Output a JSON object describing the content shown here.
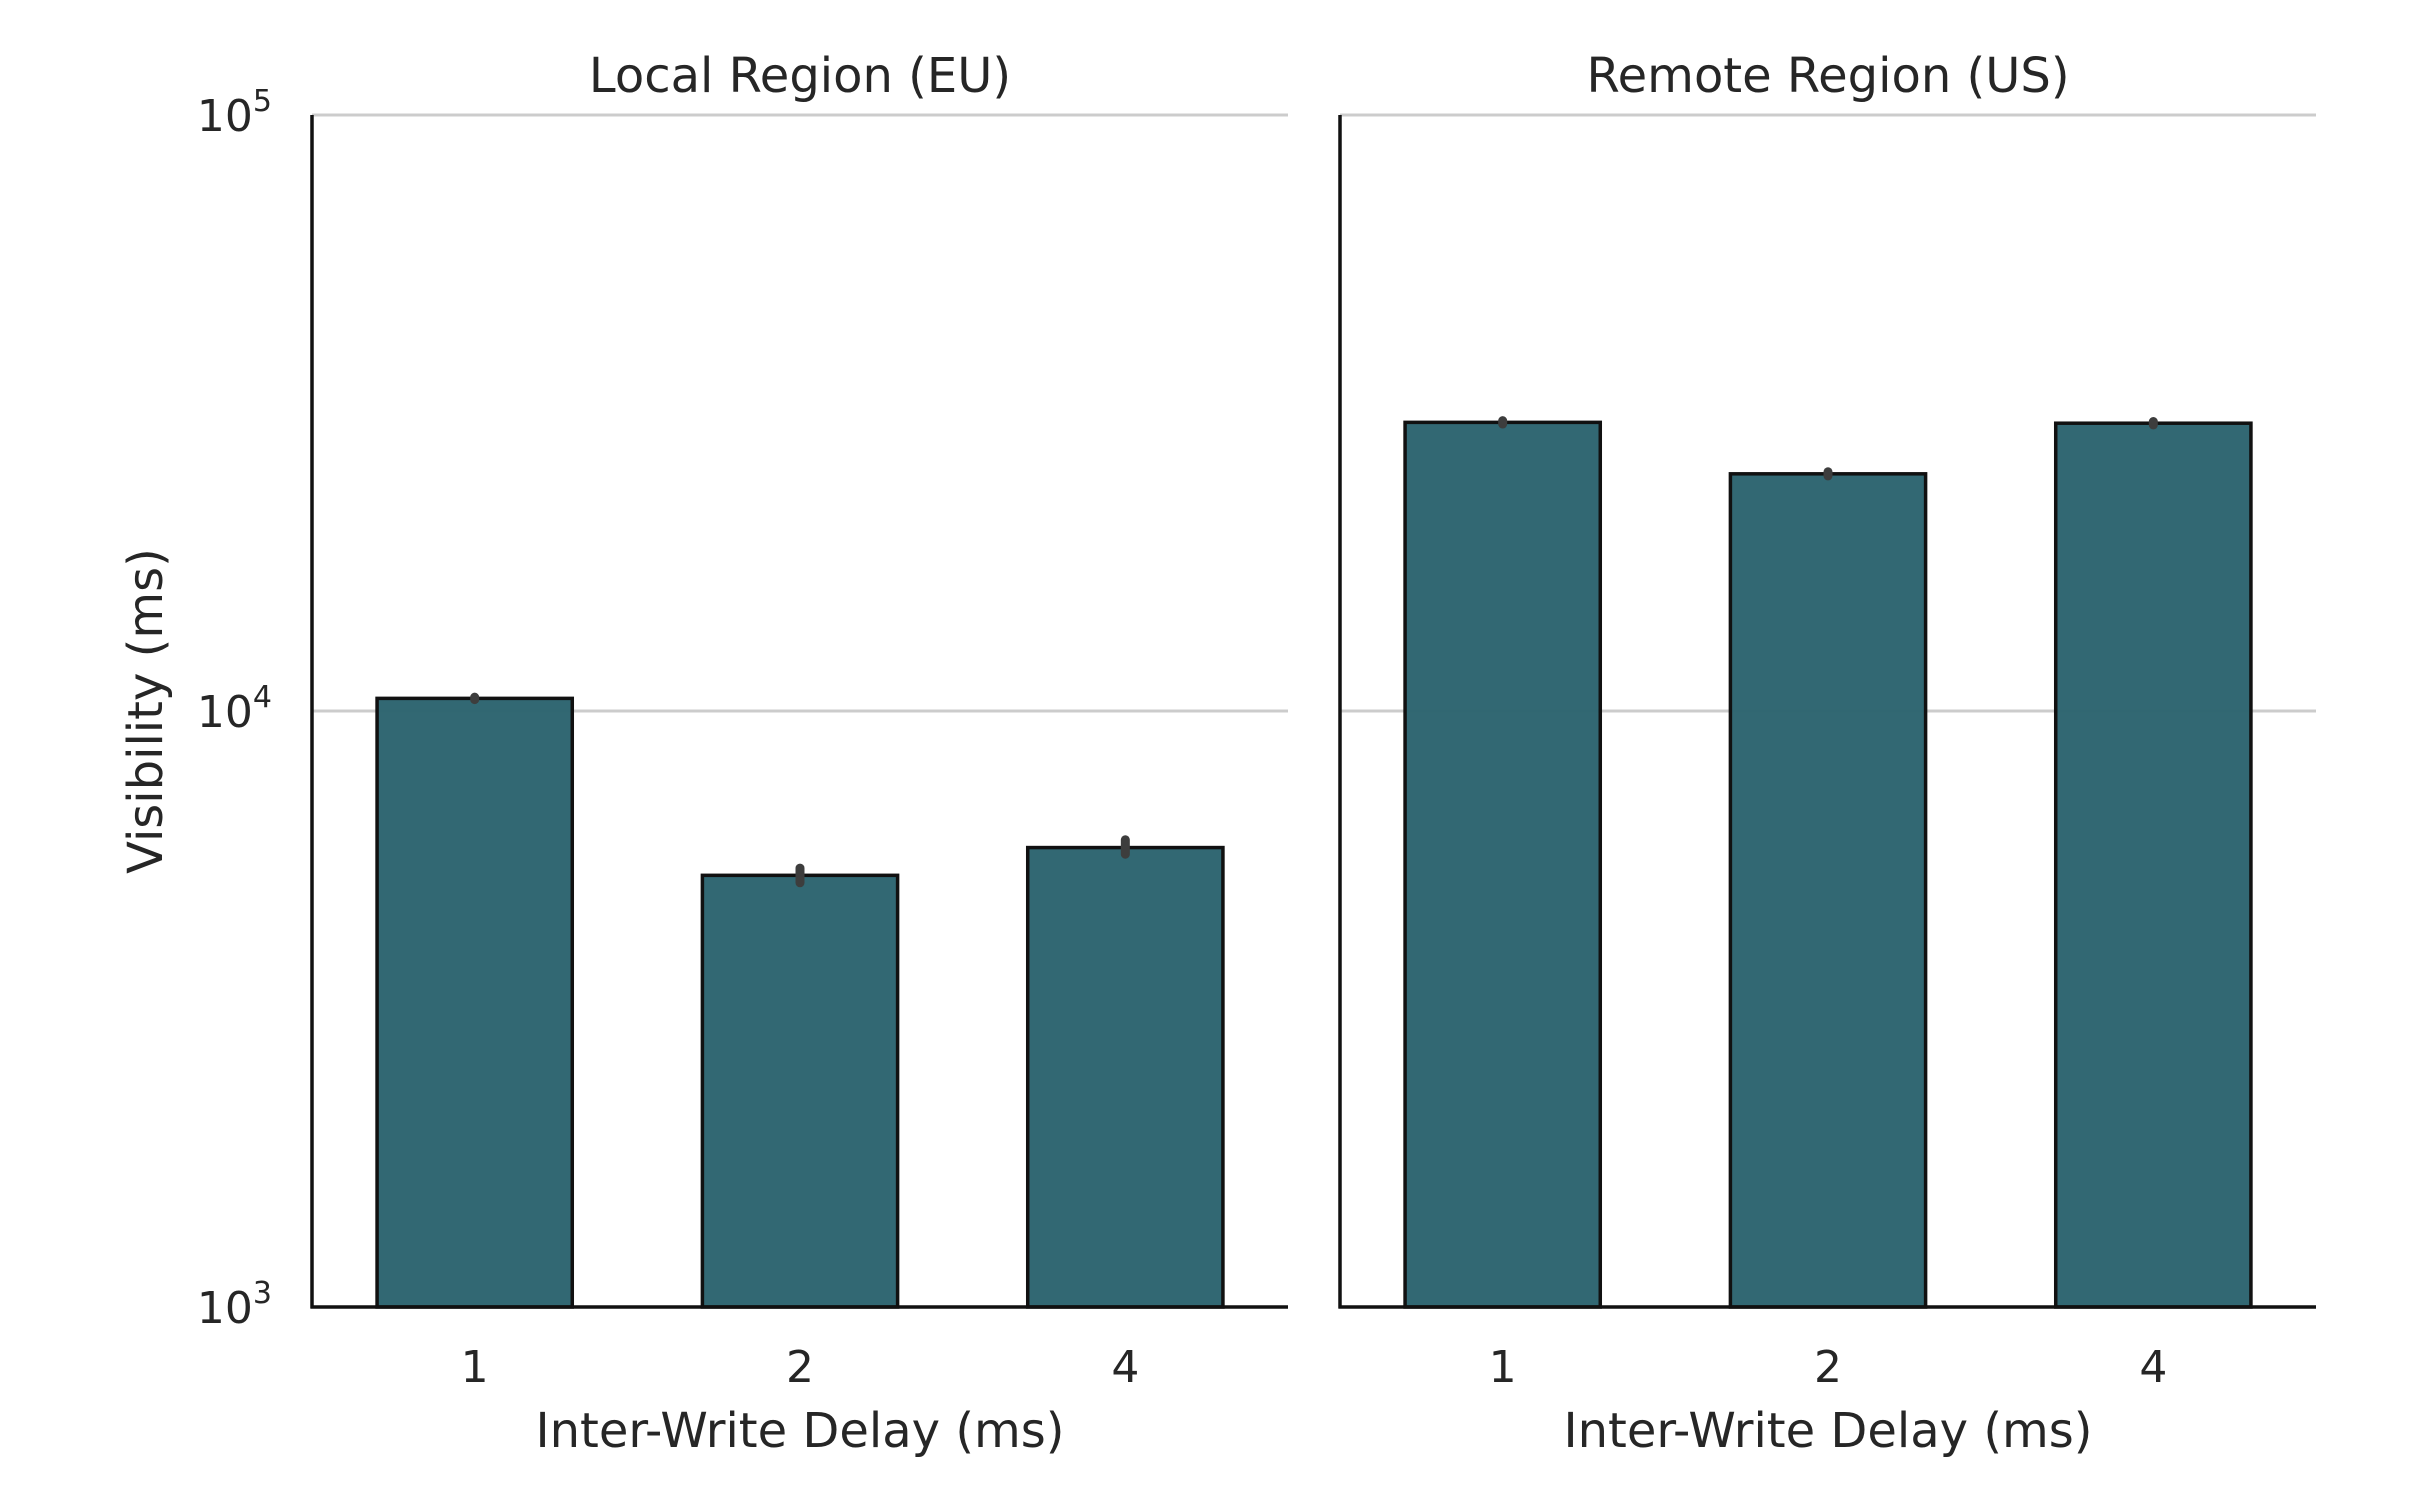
{
  "chart_data": [
    {
      "type": "bar",
      "title": "Local Region (EU)",
      "xlabel": "Inter-Write Delay (ms)",
      "ylabel": "Visibility (ms)",
      "yscale": "log",
      "ylim": [
        1000,
        100000
      ],
      "yticks": [
        {
          "value": 1000,
          "base": "10",
          "exp": "3"
        },
        {
          "value": 10000,
          "base": "10",
          "exp": "4"
        },
        {
          "value": 100000,
          "base": "10",
          "exp": "5"
        }
      ],
      "grid": "horizontal",
      "categories": [
        "1",
        "2",
        "4"
      ],
      "values": [
        10500,
        5300,
        5900
      ],
      "error_bars": [
        [
          10450,
          10550
        ],
        [
          5150,
          5450
        ],
        [
          5750,
          6080
        ]
      ],
      "bar_color": "#2e6570",
      "edge_color": "#111111"
    },
    {
      "type": "bar",
      "title": "Remote Region (US)",
      "xlabel": "Inter-Write Delay (ms)",
      "ylabel": "",
      "yscale": "log",
      "ylim": [
        1000,
        100000
      ],
      "grid": "horizontal",
      "categories": [
        "1",
        "2",
        "4"
      ],
      "values": [
        30500,
        25000,
        30400
      ],
      "error_bars": [
        [
          30300,
          30700
        ],
        [
          24800,
          25200
        ],
        [
          30200,
          30600
        ]
      ],
      "bar_color": "#2e6570",
      "edge_color": "#111111"
    }
  ]
}
